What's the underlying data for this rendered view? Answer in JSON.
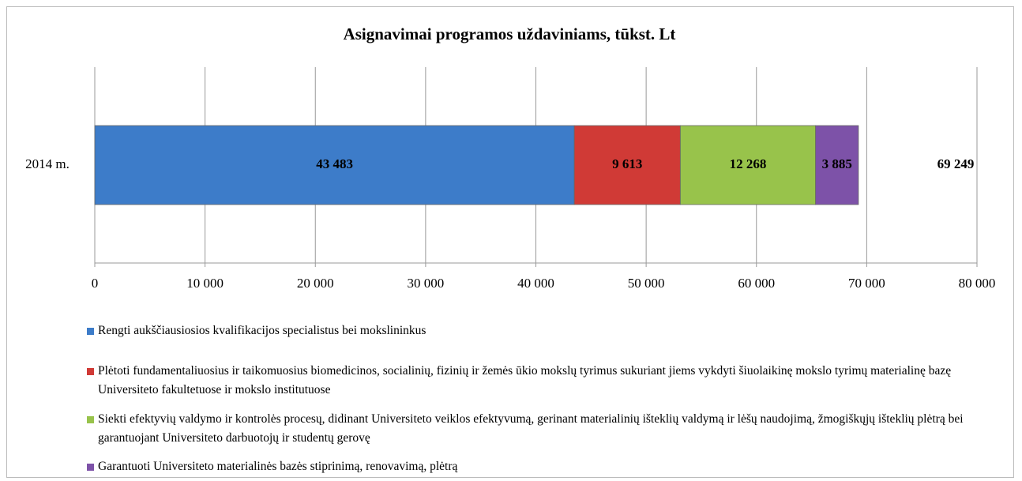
{
  "chart_data": {
    "type": "stacked_barh",
    "title": "Asignavimai programos uždaviniams, tūkst. Lt",
    "categories": [
      "2014 m."
    ],
    "series": [
      {
        "name": "Rengti aukščiausiosios kvalifikacijos specialistus bei mokslininkus",
        "color": "#3d7cc9",
        "values": [
          43483
        ],
        "value_labels": [
          "43 483"
        ]
      },
      {
        "name": "Plėtoti fundamentaliuosius ir taikomuosius biomedicinos, socialinių, fizinių ir žemės ūkio mokslų tyrimus sukuriant jiems vykdyti šiuolaikinę mokslo tyrimų materialinę bazę Universiteto fakultetuose ir mokslo institutuose",
        "color": "#d03a36",
        "values": [
          9613
        ],
        "value_labels": [
          "9 613"
        ]
      },
      {
        "name": "Siekti efektyvių valdymo ir kontrolės procesų, didinant Universiteto veiklos efektyvumą, gerinant materialinių išteklių valdymą ir lėšų naudojimą, žmogiškųjų išteklių plėtrą bei garantuojant Universiteto darbuotojų ir studentų gerovę",
        "color": "#98c34b",
        "values": [
          12268
        ],
        "value_labels": [
          "12 268"
        ]
      },
      {
        "name": "Garantuoti Universiteto materialinės bazės stiprinimą, renovavimą, plėtrą",
        "color": "#7d52a8",
        "values": [
          3885
        ],
        "value_labels": [
          "3 885"
        ]
      }
    ],
    "totals": [
      69249
    ],
    "total_labels": [
      "69 249"
    ],
    "xlim": [
      0,
      80000
    ],
    "xticks": [
      0,
      {
        "value": 10000,
        "label": "10 000"
      },
      {
        "value": 20000,
        "label": "20 000"
      },
      {
        "value": 30000,
        "label": "30 000"
      },
      {
        "value": 40000,
        "label": "40 000"
      },
      {
        "value": 50000,
        "label": "50 000"
      },
      {
        "value": 60000,
        "label": "60 000"
      },
      {
        "value": 70000,
        "label": "70 000"
      },
      {
        "value": 80000,
        "label": "80 000"
      }
    ],
    "grid": true,
    "legend": "bottom"
  }
}
